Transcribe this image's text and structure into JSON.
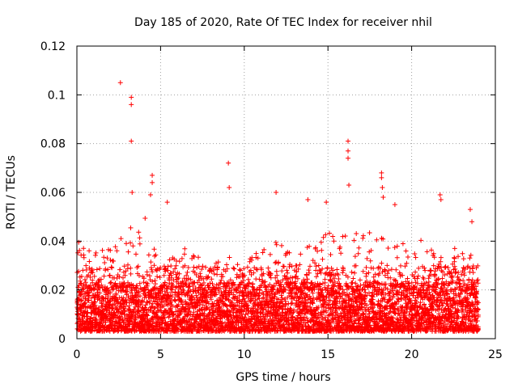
{
  "chart_data": {
    "type": "scatter",
    "title": "Day 185 of 2020, Rate Of TEC Index for receiver nhil",
    "xlabel": "GPS time / hours",
    "ylabel": "ROTI / TECUs",
    "xlim": [
      0,
      25
    ],
    "ylim": [
      0,
      0.12
    ],
    "x_ticks": [
      0,
      5,
      10,
      15,
      20,
      25
    ],
    "x_tick_labels": [
      "0",
      "5",
      "10",
      "15",
      "20",
      "25"
    ],
    "y_ticks": [
      0,
      0.02,
      0.04,
      0.06,
      0.08,
      0.1,
      0.12
    ],
    "y_tick_labels": [
      "0",
      "0.02",
      "0.04",
      "0.06",
      "0.08",
      "0.1",
      "0.12"
    ],
    "grid": true,
    "marker": "plus",
    "marker_color": "#ff0000",
    "x_range_hours": [
      0,
      24
    ],
    "typical_range": [
      0.003,
      0.03
    ],
    "activity_profile": [
      {
        "hour": 0,
        "level": 0.042
      },
      {
        "hour": 1,
        "level": 0.035
      },
      {
        "hour": 2,
        "level": 0.04
      },
      {
        "hour": 3,
        "level": 0.05
      },
      {
        "hour": 4,
        "level": 0.052
      },
      {
        "hour": 5,
        "level": 0.028
      },
      {
        "hour": 6,
        "level": 0.038
      },
      {
        "hour": 7,
        "level": 0.036
      },
      {
        "hour": 8,
        "level": 0.03
      },
      {
        "hour": 9,
        "level": 0.036
      },
      {
        "hour": 10,
        "level": 0.03
      },
      {
        "hour": 11,
        "level": 0.038
      },
      {
        "hour": 12,
        "level": 0.04
      },
      {
        "hour": 13,
        "level": 0.035
      },
      {
        "hour": 14,
        "level": 0.042
      },
      {
        "hour": 15,
        "level": 0.044
      },
      {
        "hour": 16,
        "level": 0.05
      },
      {
        "hour": 17,
        "level": 0.042
      },
      {
        "hour": 18,
        "level": 0.045
      },
      {
        "hour": 19,
        "level": 0.043
      },
      {
        "hour": 20,
        "level": 0.035
      },
      {
        "hour": 21,
        "level": 0.045
      },
      {
        "hour": 22,
        "level": 0.033
      },
      {
        "hour": 23,
        "level": 0.04
      },
      {
        "hour": 24,
        "level": 0.03
      }
    ],
    "outliers": [
      {
        "x": 2.6,
        "y": 0.105
      },
      {
        "x": 3.25,
        "y": 0.099
      },
      {
        "x": 3.25,
        "y": 0.096
      },
      {
        "x": 3.25,
        "y": 0.081
      },
      {
        "x": 4.5,
        "y": 0.067
      },
      {
        "x": 4.5,
        "y": 0.064
      },
      {
        "x": 4.4,
        "y": 0.059
      },
      {
        "x": 3.3,
        "y": 0.06
      },
      {
        "x": 5.4,
        "y": 0.056
      },
      {
        "x": 9.05,
        "y": 0.072
      },
      {
        "x": 9.1,
        "y": 0.062
      },
      {
        "x": 11.9,
        "y": 0.06
      },
      {
        "x": 13.8,
        "y": 0.057
      },
      {
        "x": 14.9,
        "y": 0.056
      },
      {
        "x": 16.2,
        "y": 0.081
      },
      {
        "x": 16.2,
        "y": 0.077
      },
      {
        "x": 16.2,
        "y": 0.074
      },
      {
        "x": 16.25,
        "y": 0.063
      },
      {
        "x": 18.2,
        "y": 0.068
      },
      {
        "x": 18.2,
        "y": 0.066
      },
      {
        "x": 18.25,
        "y": 0.062
      },
      {
        "x": 18.3,
        "y": 0.058
      },
      {
        "x": 19.0,
        "y": 0.055
      },
      {
        "x": 21.7,
        "y": 0.059
      },
      {
        "x": 21.75,
        "y": 0.057
      },
      {
        "x": 23.5,
        "y": 0.053
      },
      {
        "x": 23.6,
        "y": 0.048
      }
    ]
  }
}
